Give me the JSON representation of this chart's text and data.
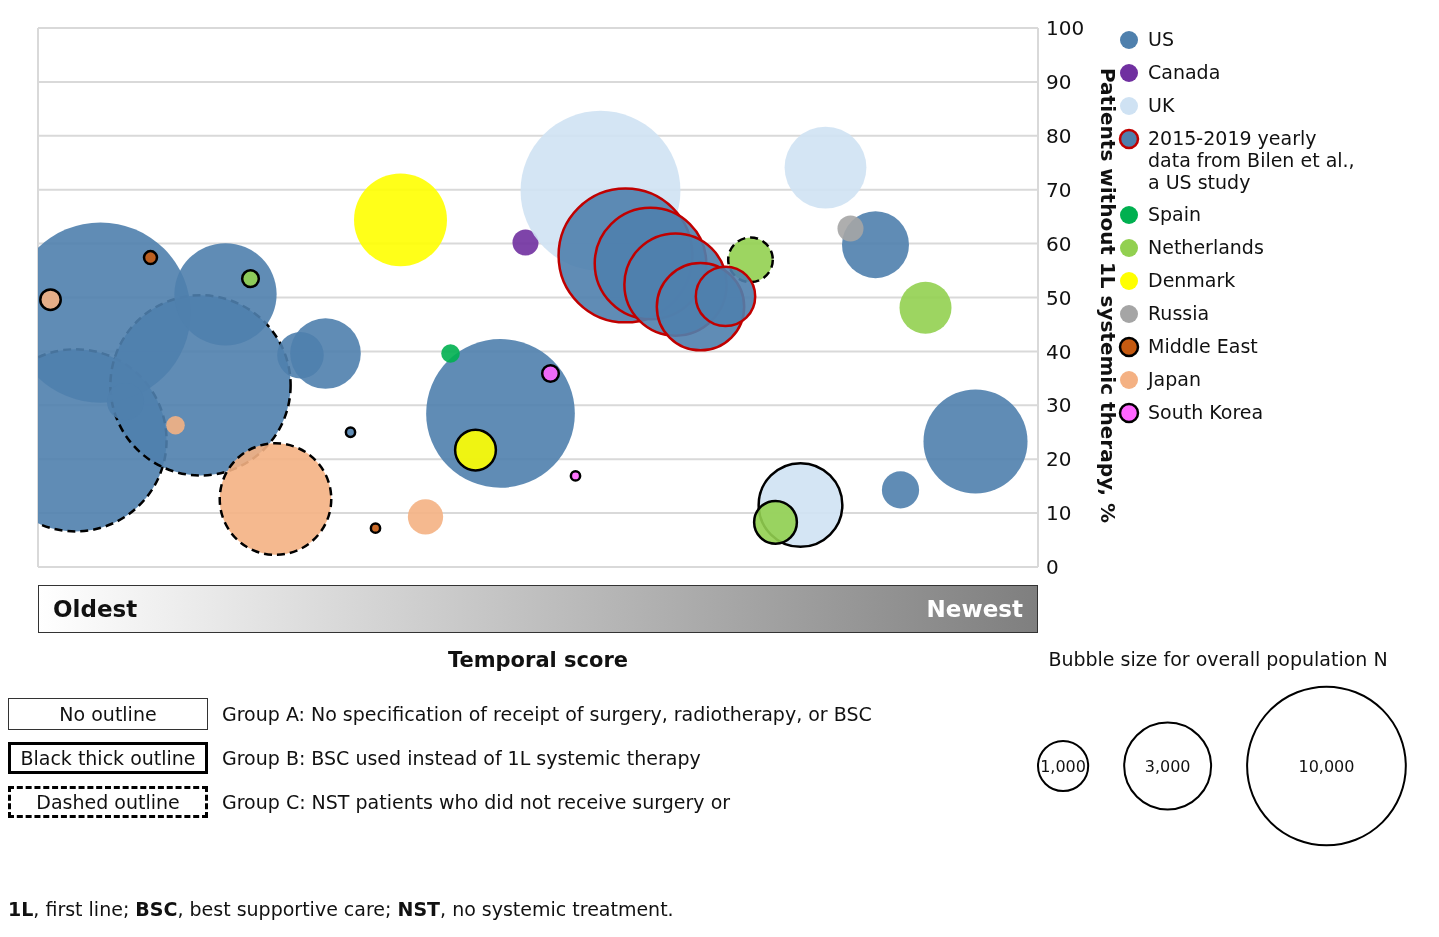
{
  "chart_data": {
    "type": "bubble",
    "xlabel": "Temporal score",
    "ylabel": "Patients without 1L systemic therapy, %",
    "categories": [
      null,
      null,
      null,
      null,
      null,
      null,
      null,
      null,
      null,
      null,
      null,
      null,
      null,
      null,
      null,
      null,
      null,
      null,
      null,
      null,
      null,
      null,
      null,
      null,
      null,
      null,
      null,
      null,
      null,
      null,
      null,
      null,
      null,
      null,
      null,
      null,
      null,
      null,
      null,
      null
    ],
    "ylim": [
      0,
      100
    ],
    "yticks": [
      0,
      10,
      20,
      30,
      40,
      50,
      60,
      70,
      80,
      90,
      100
    ],
    "grid": true,
    "tick_labels": "y",
    "legend": "right",
    "marker": "circle",
    "size_legend": [
      {
        "value": 1000,
        "label": "1,000"
      },
      {
        "value": 3000,
        "label": "3,000"
      },
      {
        "value": 10000,
        "label": "10,000"
      }
    ],
    "series": [
      {
        "color": "#4f80ad",
        "line_style": "dashed",
        "values": [
          null,
          23.5,
          null,
          null,
          null,
          null,
          33.7,
          null,
          null,
          null,
          null,
          null,
          null,
          null,
          null,
          null,
          null,
          null,
          null,
          null,
          null,
          null,
          null,
          null,
          null,
          null,
          null,
          null,
          null,
          null,
          null,
          null,
          null,
          null,
          null,
          null,
          null,
          null,
          null,
          null
        ],
        "sizes": [
          null,
          13170,
          null,
          null,
          null,
          null,
          12900,
          null,
          null,
          null,
          null,
          null,
          null,
          null,
          null,
          null,
          null,
          null,
          null,
          null,
          null,
          null,
          null,
          null,
          null,
          null,
          null,
          null,
          null,
          null,
          null,
          null,
          null,
          null,
          null,
          null,
          null,
          null,
          null,
          null
        ]
      },
      {
        "color": "#f4b183",
        "line_style": "dashed",
        "values": [
          null,
          null,
          null,
          null,
          null,
          null,
          null,
          null,
          null,
          12.6,
          null,
          null,
          null,
          null,
          null,
          null,
          null,
          null,
          null,
          null,
          null,
          null,
          null,
          null,
          null,
          null,
          null,
          null,
          null,
          null,
          null,
          null,
          null,
          null,
          null,
          null,
          null,
          null,
          null,
          null
        ],
        "sizes": [
          null,
          null,
          null,
          null,
          null,
          null,
          null,
          null,
          null,
          4940,
          null,
          null,
          null,
          null,
          null,
          null,
          null,
          null,
          null,
          null,
          null,
          null,
          null,
          null,
          null,
          null,
          null,
          null,
          null,
          null,
          null,
          null,
          null,
          null,
          null,
          null,
          null,
          null,
          null,
          null
        ]
      },
      {
        "color": "#92d050",
        "line_style": "dashed",
        "values": [
          null,
          null,
          null,
          null,
          null,
          null,
          null,
          null,
          null,
          null,
          null,
          null,
          null,
          null,
          null,
          null,
          null,
          null,
          null,
          null,
          null,
          null,
          null,
          null,
          null,
          null,
          null,
          null,
          57.0,
          null,
          null,
          null,
          null,
          null,
          null,
          null,
          null,
          null,
          null,
          null
        ],
        "sizes": [
          null,
          null,
          null,
          null,
          null,
          null,
          null,
          null,
          null,
          null,
          null,
          null,
          null,
          null,
          null,
          null,
          null,
          null,
          null,
          null,
          null,
          null,
          null,
          null,
          null,
          null,
          null,
          null,
          790,
          null,
          null,
          null,
          null,
          null,
          null,
          null,
          null,
          null,
          null,
          null
        ]
      },
      {
        "name": "US",
        "color": "#4f80ad",
        "values": [
          null,
          null,
          47.2,
          30.7,
          null,
          null,
          null,
          50.6,
          null,
          null,
          39.3,
          39.6,
          null,
          null,
          null,
          null,
          null,
          null,
          28.5,
          null,
          null,
          null,
          null,
          null,
          null,
          null,
          null,
          null,
          null,
          null,
          null,
          null,
          null,
          59.8,
          14.3,
          null,
          null,
          23.3,
          null,
          null
        ],
        "sizes": [
          null,
          null,
          12900,
          550,
          null,
          null,
          null,
          4150,
          null,
          null,
          860,
          1980,
          null,
          null,
          null,
          null,
          null,
          null,
          8780,
          null,
          null,
          null,
          null,
          null,
          null,
          null,
          null,
          null,
          null,
          null,
          null,
          null,
          null,
          1780,
          550,
          null,
          null,
          4300,
          null,
          null
        ]
      },
      {
        "name": "Canada",
        "color": "#7030a0",
        "values": [
          null,
          null,
          null,
          null,
          null,
          null,
          null,
          null,
          null,
          null,
          null,
          null,
          null,
          null,
          null,
          null,
          null,
          null,
          null,
          60.2,
          null,
          null,
          null,
          null,
          null,
          null,
          null,
          null,
          null,
          null,
          null,
          null,
          null,
          null,
          null,
          null,
          null,
          null,
          null,
          null
        ],
        "sizes": [
          null,
          null,
          null,
          null,
          null,
          null,
          null,
          null,
          null,
          null,
          null,
          null,
          null,
          null,
          null,
          null,
          null,
          null,
          null,
          270,
          null,
          null,
          null,
          null,
          null,
          null,
          null,
          null,
          null,
          null,
          null,
          null,
          null,
          null,
          null,
          null,
          null,
          null,
          null,
          null
        ]
      },
      {
        "name": "UK",
        "color": "#cfe2f3",
        "values": [
          null,
          null,
          null,
          null,
          null,
          null,
          null,
          null,
          null,
          null,
          null,
          null,
          null,
          null,
          null,
          null,
          null,
          null,
          null,
          null,
          null,
          null,
          69.8,
          null,
          null,
          null,
          null,
          null,
          null,
          null,
          null,
          74.1,
          null,
          null,
          null,
          null,
          null,
          null,
          null,
          null
        ],
        "sizes": [
          null,
          null,
          null,
          null,
          null,
          null,
          null,
          null,
          null,
          null,
          null,
          null,
          null,
          null,
          null,
          null,
          null,
          null,
          null,
          null,
          null,
          null,
          10150,
          null,
          null,
          null,
          null,
          null,
          null,
          null,
          null,
          2660,
          null,
          null,
          null,
          null,
          null,
          null,
          null,
          null
        ]
      },
      {
        "name": "2015-2019 yearly data from Bilen et al., a US study",
        "color": "#c00000",
        "line_style": "solid",
        "colors": [
          null,
          null,
          null,
          null,
          null,
          null,
          null,
          null,
          null,
          null,
          null,
          null,
          null,
          null,
          null,
          null,
          null,
          null,
          null,
          null,
          null,
          null,
          null,
          "#4f80ad",
          "#4f80ad",
          "#4f80ad",
          "#4f80ad",
          "#4f80ad",
          null,
          null,
          null,
          null,
          null,
          null,
          null,
          null,
          null,
          null,
          null,
          null
        ],
        "values": [
          null,
          null,
          null,
          null,
          null,
          null,
          null,
          null,
          null,
          null,
          null,
          null,
          null,
          null,
          null,
          null,
          null,
          null,
          null,
          null,
          null,
          null,
          null,
          57.8,
          56.3,
          52.4,
          48.3,
          50.2,
          null,
          null,
          null,
          null,
          null,
          null,
          null,
          null,
          null,
          null,
          null,
          null
        ],
        "sizes": [
          null,
          null,
          null,
          null,
          null,
          null,
          null,
          null,
          null,
          null,
          null,
          null,
          null,
          null,
          null,
          null,
          null,
          null,
          null,
          null,
          null,
          null,
          null,
          7110,
          4940,
          4150,
          3030,
          1400,
          null,
          null,
          null,
          null,
          null,
          null,
          null,
          null,
          null,
          null,
          null,
          null
        ]
      },
      {
        "color": "#cfe2f3",
        "line_style": "solid",
        "values": [
          null,
          null,
          null,
          null,
          null,
          null,
          null,
          null,
          null,
          null,
          null,
          null,
          null,
          null,
          null,
          null,
          null,
          null,
          null,
          null,
          null,
          null,
          null,
          null,
          null,
          null,
          null,
          null,
          null,
          null,
          11.5,
          null,
          null,
          null,
          null,
          null,
          null,
          null,
          null,
          null
        ],
        "sizes": [
          null,
          null,
          null,
          null,
          null,
          null,
          null,
          null,
          null,
          null,
          null,
          null,
          null,
          null,
          null,
          null,
          null,
          null,
          null,
          null,
          null,
          null,
          null,
          null,
          null,
          null,
          null,
          null,
          null,
          null,
          2780,
          null,
          null,
          null,
          null,
          null,
          null,
          null,
          null,
          null
        ]
      },
      {
        "name": "Spain",
        "color": "#00b050",
        "values": [
          null,
          null,
          null,
          null,
          null,
          null,
          null,
          null,
          null,
          null,
          null,
          null,
          null,
          null,
          null,
          null,
          39.6,
          null,
          null,
          null,
          null,
          null,
          null,
          null,
          null,
          null,
          null,
          null,
          null,
          null,
          null,
          null,
          null,
          null,
          null,
          null,
          null,
          null,
          null,
          null
        ],
        "sizes": [
          null,
          null,
          null,
          null,
          null,
          null,
          null,
          null,
          null,
          null,
          null,
          null,
          null,
          null,
          null,
          null,
          137,
          null,
          null,
          null,
          null,
          null,
          null,
          null,
          null,
          null,
          null,
          null,
          null,
          null,
          null,
          null,
          null,
          null,
          null,
          null,
          null,
          null,
          null,
          null
        ]
      },
      {
        "name": "Netherlands",
        "color": "#92d050",
        "values": [
          null,
          null,
          null,
          null,
          null,
          null,
          null,
          null,
          null,
          null,
          null,
          null,
          null,
          null,
          null,
          null,
          null,
          null,
          null,
          null,
          null,
          null,
          null,
          null,
          null,
          null,
          null,
          null,
          null,
          null,
          null,
          null,
          null,
          null,
          null,
          48.1,
          null,
          null,
          null,
          null
        ],
        "sizes": [
          null,
          null,
          null,
          null,
          null,
          null,
          null,
          null,
          null,
          null,
          null,
          null,
          null,
          null,
          null,
          null,
          null,
          null,
          null,
          null,
          null,
          null,
          null,
          null,
          null,
          null,
          null,
          null,
          null,
          null,
          null,
          null,
          null,
          null,
          null,
          1075,
          null,
          null,
          null,
          null
        ]
      },
      {
        "color": "#92d050",
        "line_style": "solid",
        "values": [
          null,
          null,
          null,
          null,
          null,
          null,
          null,
          null,
          53.5,
          null,
          null,
          null,
          null,
          null,
          null,
          null,
          null,
          null,
          null,
          null,
          null,
          null,
          null,
          null,
          null,
          null,
          null,
          null,
          null,
          8.3,
          null,
          null,
          null,
          null,
          null,
          null,
          null,
          null,
          null,
          null
        ],
        "sizes": [
          null,
          null,
          null,
          null,
          null,
          null,
          null,
          null,
          110,
          null,
          null,
          null,
          null,
          null,
          null,
          null,
          null,
          null,
          null,
          null,
          null,
          null,
          null,
          null,
          null,
          null,
          null,
          null,
          null,
          726,
          null,
          null,
          null,
          null,
          null,
          null,
          null,
          null,
          null,
          null
        ]
      },
      {
        "name": "Denmark",
        "color": "#ffff00",
        "values": [
          null,
          null,
          null,
          null,
          null,
          null,
          null,
          null,
          null,
          null,
          null,
          null,
          null,
          null,
          64.4,
          null,
          null,
          null,
          null,
          null,
          null,
          null,
          null,
          null,
          null,
          null,
          null,
          null,
          null,
          null,
          null,
          null,
          null,
          null,
          null,
          null,
          null,
          null,
          null,
          null
        ],
        "sizes": [
          null,
          null,
          null,
          null,
          null,
          null,
          null,
          null,
          null,
          null,
          null,
          null,
          null,
          null,
          3430,
          null,
          null,
          null,
          null,
          null,
          null,
          null,
          null,
          null,
          null,
          null,
          null,
          null,
          null,
          null,
          null,
          null,
          null,
          null,
          null,
          null,
          null,
          null,
          null,
          null
        ]
      },
      {
        "color": "#ffff00",
        "line_style": "solid",
        "values": [
          null,
          null,
          null,
          null,
          null,
          null,
          null,
          null,
          null,
          null,
          null,
          null,
          null,
          null,
          null,
          null,
          null,
          21.7,
          null,
          null,
          null,
          null,
          null,
          null,
          null,
          null,
          null,
          null,
          null,
          null,
          null,
          null,
          null,
          null,
          null,
          null,
          null,
          null,
          null,
          null
        ],
        "sizes": [
          null,
          null,
          null,
          null,
          null,
          null,
          null,
          null,
          null,
          null,
          null,
          null,
          null,
          null,
          null,
          null,
          null,
          660,
          null,
          null,
          null,
          null,
          null,
          null,
          null,
          null,
          null,
          null,
          null,
          null,
          null,
          null,
          null,
          null,
          null,
          null,
          null,
          null,
          null,
          null
        ]
      },
      {
        "name": "Russia",
        "color": "#a5a5a5",
        "values": [
          null,
          null,
          null,
          null,
          null,
          null,
          null,
          null,
          null,
          null,
          null,
          null,
          null,
          null,
          null,
          null,
          null,
          null,
          null,
          null,
          null,
          null,
          null,
          null,
          null,
          null,
          null,
          null,
          null,
          null,
          null,
          null,
          62.8,
          null,
          null,
          null,
          null,
          null,
          null,
          null
        ],
        "sizes": [
          null,
          null,
          null,
          null,
          null,
          null,
          null,
          null,
          null,
          null,
          null,
          null,
          null,
          null,
          null,
          null,
          null,
          null,
          null,
          null,
          null,
          null,
          null,
          null,
          null,
          null,
          null,
          null,
          null,
          null,
          null,
          null,
          270,
          null,
          null,
          null,
          null,
          null,
          null,
          null
        ]
      },
      {
        "name": "Middle East",
        "color": "#c55a11",
        "line_style": "solid",
        "values": [
          null,
          null,
          null,
          null,
          57.4,
          null,
          null,
          null,
          null,
          null,
          null,
          null,
          null,
          7.2,
          null,
          null,
          null,
          null,
          null,
          null,
          null,
          null,
          null,
          null,
          null,
          null,
          null,
          null,
          null,
          null,
          null,
          null,
          null,
          null,
          null,
          null,
          null,
          null,
          null,
          null
        ],
        "sizes": [
          null,
          null,
          null,
          null,
          67,
          null,
          null,
          null,
          null,
          null,
          null,
          null,
          null,
          34,
          null,
          null,
          null,
          null,
          null,
          null,
          null,
          null,
          null,
          null,
          null,
          null,
          null,
          null,
          null,
          null,
          null,
          null,
          null,
          null,
          null,
          null,
          null,
          null,
          null,
          null
        ]
      },
      {
        "name": "Japan",
        "color": "#f4b183",
        "values": [
          null,
          null,
          null,
          null,
          null,
          26.3,
          null,
          null,
          null,
          null,
          null,
          null,
          null,
          null,
          null,
          9.3,
          null,
          null,
          null,
          null,
          null,
          null,
          null,
          null,
          null,
          null,
          null,
          null,
          null,
          null,
          null,
          null,
          null,
          null,
          null,
          null,
          null,
          null,
          null,
          null
        ],
        "sizes": [
          null,
          null,
          null,
          null,
          null,
          137,
          null,
          null,
          null,
          null,
          null,
          null,
          null,
          null,
          null,
          495,
          null,
          null,
          null,
          null,
          null,
          null,
          null,
          null,
          null,
          null,
          null,
          null,
          null,
          null,
          null,
          null,
          null,
          null,
          null,
          null,
          null,
          null,
          null,
          null
        ]
      },
      {
        "color": "#f4b183",
        "line_style": "solid",
        "values": [
          49.6,
          null,
          null,
          null,
          null,
          null,
          null,
          null,
          null,
          null,
          null,
          null,
          null,
          null,
          null,
          null,
          null,
          null,
          null,
          null,
          null,
          null,
          null,
          null,
          null,
          null,
          null,
          null,
          null,
          null,
          null,
          null,
          null,
          null,
          null,
          null,
          null,
          null,
          null,
          null
        ],
        "sizes": [
          166,
          null,
          null,
          null,
          null,
          null,
          null,
          null,
          null,
          null,
          null,
          null,
          null,
          null,
          null,
          null,
          null,
          null,
          null,
          null,
          null,
          null,
          null,
          null,
          null,
          null,
          null,
          null,
          null,
          null,
          null,
          null,
          null,
          null,
          null,
          null,
          null,
          null,
          null,
          null
        ]
      },
      {
        "name": "South Korea",
        "color": "#ff66ff",
        "line_style": "solid",
        "values": [
          null,
          null,
          null,
          null,
          null,
          null,
          null,
          null,
          null,
          null,
          null,
          null,
          null,
          null,
          null,
          null,
          null,
          null,
          null,
          null,
          35.9,
          16.9,
          null,
          null,
          null,
          null,
          null,
          null,
          null,
          null,
          null,
          null,
          null,
          null,
          null,
          null,
          null,
          null,
          null,
          null
        ],
        "sizes": [
          null,
          null,
          null,
          null,
          null,
          null,
          null,
          null,
          null,
          null,
          null,
          null,
          null,
          null,
          null,
          null,
          null,
          null,
          null,
          null,
          110,
          34,
          null,
          null,
          null,
          null,
          null,
          null,
          null,
          null,
          null,
          null,
          null,
          null,
          null,
          null,
          null,
          null,
          null,
          null
        ]
      },
      {
        "color": "#4f80ad",
        "line_style": "solid",
        "values": [
          null,
          null,
          null,
          null,
          null,
          null,
          null,
          null,
          null,
          null,
          null,
          null,
          25.0,
          null,
          null,
          null,
          null,
          null,
          null,
          null,
          null,
          null,
          null,
          null,
          null,
          null,
          null,
          null,
          null,
          null,
          null,
          null,
          null,
          null,
          null,
          null,
          null,
          null,
          null,
          null
        ],
        "sizes": [
          null,
          null,
          null,
          null,
          null,
          null,
          null,
          null,
          null,
          null,
          null,
          null,
          34,
          null,
          null,
          null,
          null,
          null,
          null,
          null,
          null,
          null,
          null,
          null,
          null,
          null,
          null,
          null,
          null,
          null,
          null,
          null,
          null,
          null,
          null,
          null,
          null,
          null,
          null,
          null
        ]
      }
    ],
    "annotations": [
      "Oldest",
      "Newest",
      "Bubble size for overall population N",
      "No outline",
      "Group A: No specification of receipt of surgery, radiotherapy, or BSC",
      "Black thick outline",
      "Group B: BSC used instead of 1L systemic therapy",
      "Dashed outline",
      "Group C: NST patients who did not receive surgery or",
      "1L, first line; BSC, best supportive care; NST, no systemic treatment."
    ]
  }
}
